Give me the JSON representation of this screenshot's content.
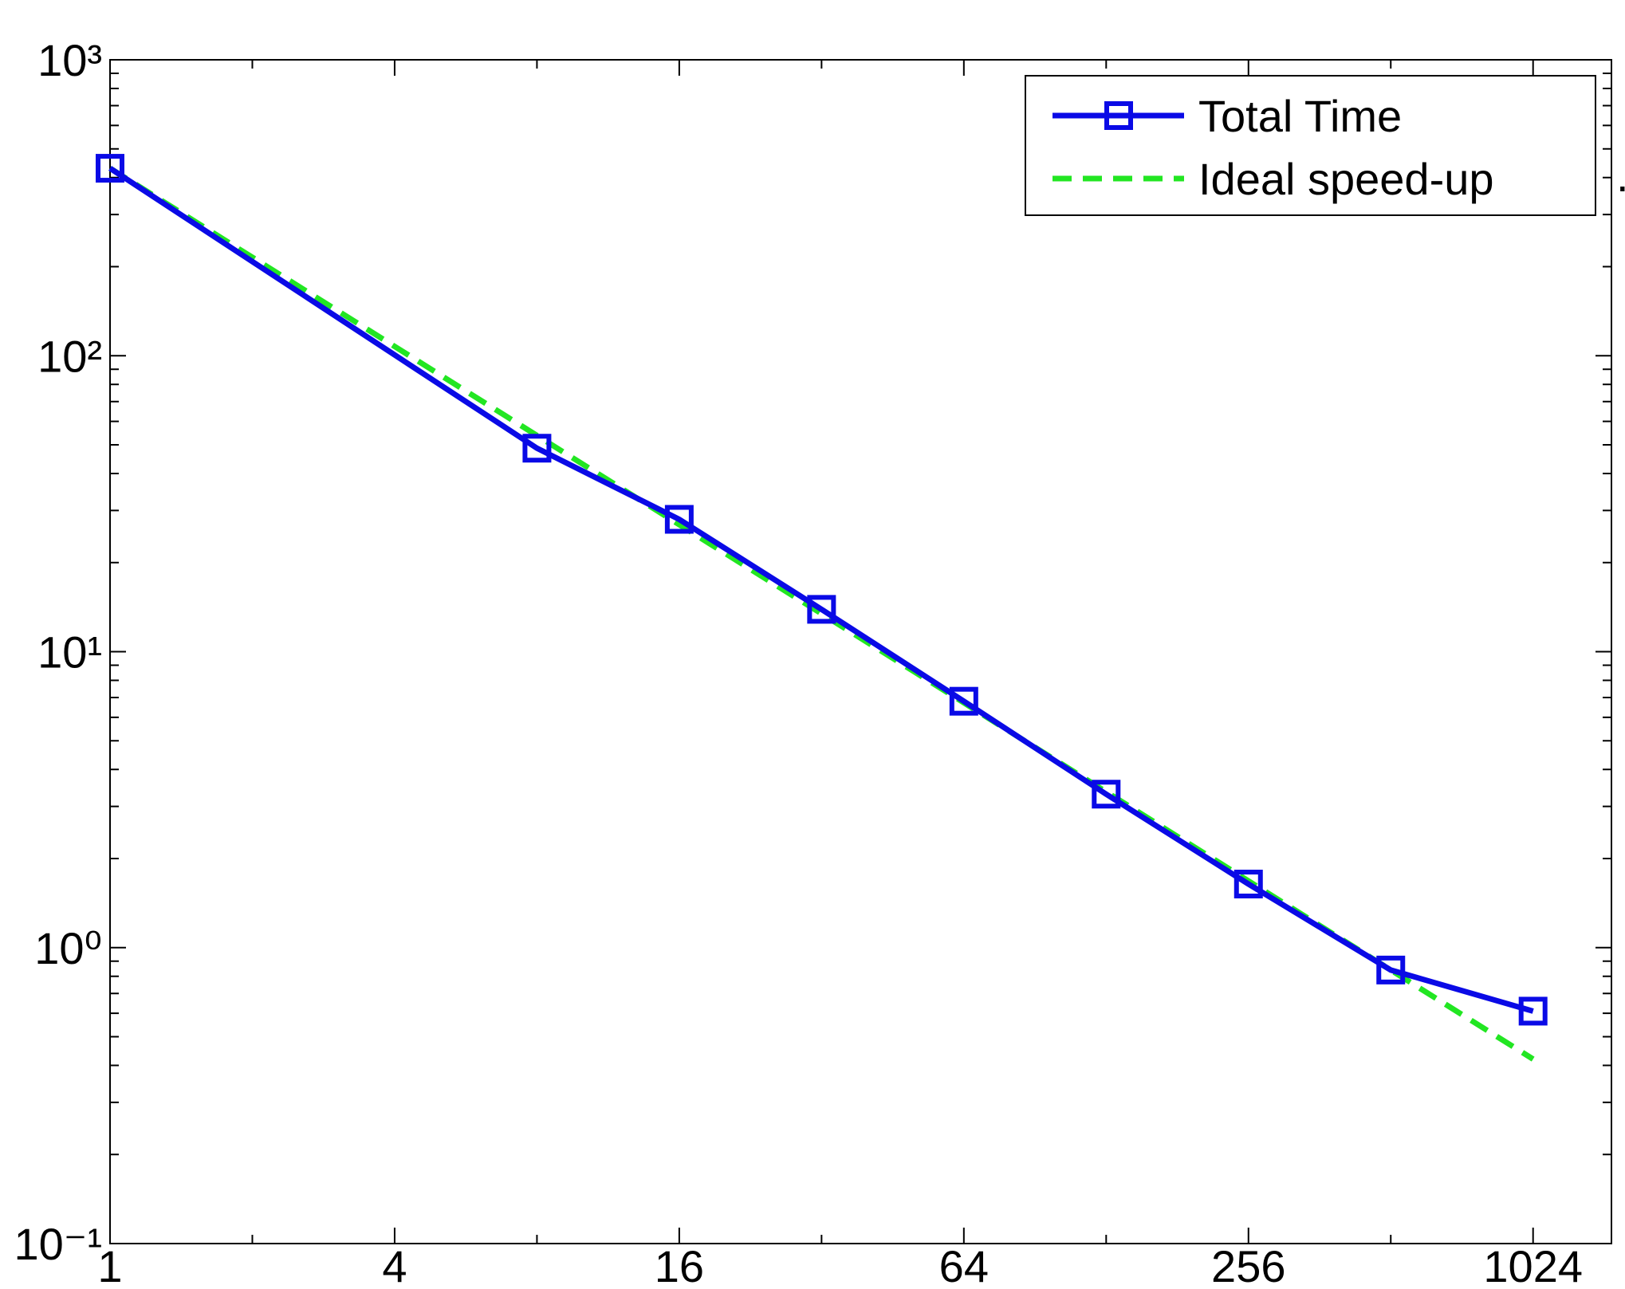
{
  "chart_data": {
    "type": "line",
    "xlog": true,
    "ylog": true,
    "grid": false,
    "legend": "upper right",
    "xlim": [
      1,
      1500
    ],
    "ylim": [
      0.1,
      1000
    ],
    "xticks": [
      1,
      4,
      16,
      64,
      256,
      1024
    ],
    "xminorticks": [
      2,
      8,
      32,
      128,
      512
    ],
    "yticks": [
      {
        "value": 0.1,
        "label": "10⁻¹"
      },
      {
        "value": 1,
        "label": "10⁰"
      },
      {
        "value": 10,
        "label": "10¹"
      },
      {
        "value": 100,
        "label": "10²"
      },
      {
        "value": 1000,
        "label": "10³"
      }
    ],
    "yminorticks": [
      0.2,
      0.3,
      0.4,
      0.5,
      0.6,
      0.7,
      0.8,
      0.9,
      2,
      3,
      4,
      5,
      6,
      7,
      8,
      9,
      20,
      30,
      40,
      50,
      60,
      70,
      80,
      90,
      200,
      300,
      400,
      500,
      600,
      700,
      800,
      900
    ],
    "series": [
      {
        "name": "Total Time",
        "color": "#0a0ae6",
        "style": "solid",
        "marker": "square",
        "x": [
          1,
          8,
          16,
          32,
          64,
          128,
          256,
          512,
          1024
        ],
        "values": [
          430,
          48.7,
          28,
          13.9,
          6.8,
          3.3,
          1.64,
          0.84,
          0.61
        ]
      },
      {
        "name": "Ideal speed-up",
        "color": "#22e622",
        "style": "dashed",
        "x": [
          1,
          1024
        ],
        "values": [
          430,
          0.42
        ]
      }
    ],
    "annotation": "."
  }
}
